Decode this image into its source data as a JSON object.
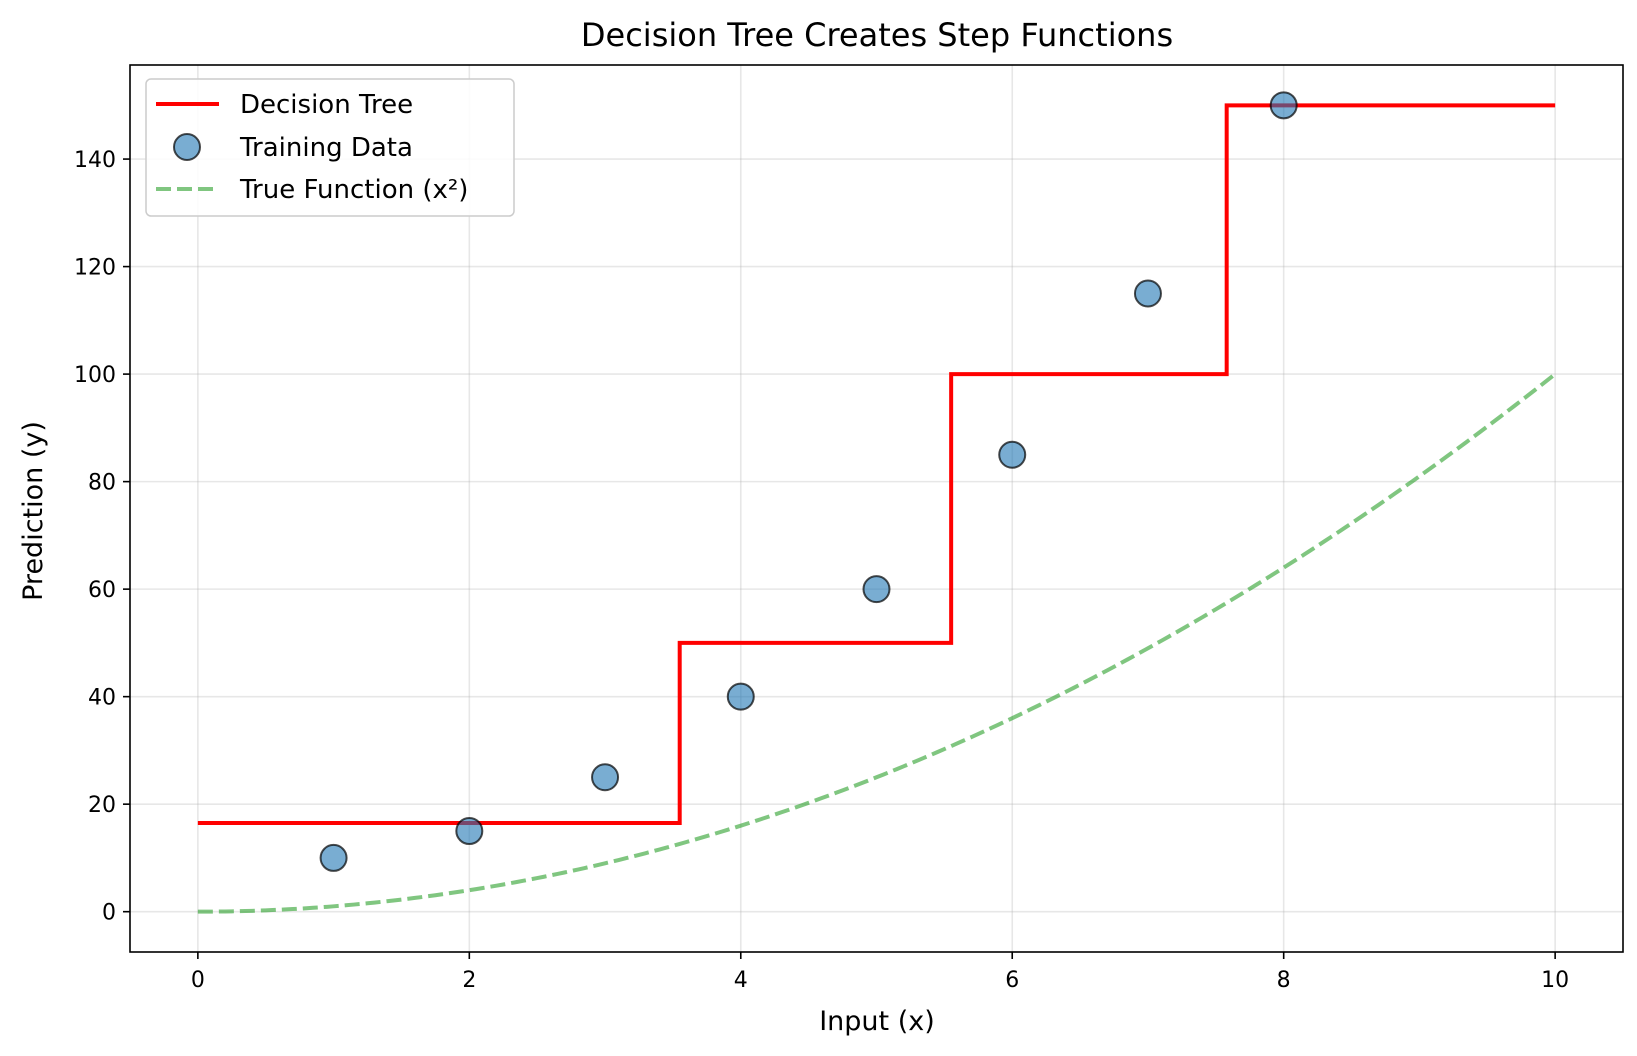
{
  "chart_data": {
    "type": "line",
    "title": "Decision Tree Creates Step Functions",
    "xlabel": "Input (x)",
    "ylabel": "Prediction (y)",
    "xlim": [
      -0.5,
      10.5
    ],
    "ylim": [
      -7.5,
      157.5
    ],
    "xticks": [
      0,
      2,
      4,
      6,
      8,
      10
    ],
    "xtick_labels": [
      "0",
      "2",
      "4",
      "6",
      "8",
      "10"
    ],
    "yticks": [
      0,
      20,
      40,
      60,
      80,
      100,
      120,
      140
    ],
    "ytick_labels": [
      "0",
      "20",
      "40",
      "60",
      "80",
      "100",
      "120",
      "140"
    ],
    "grid": true,
    "legend_position": "top-left",
    "series": [
      {
        "name": "Decision Tree",
        "kind": "step",
        "color": "#ff0000",
        "x": [
          0,
          3.55,
          3.55,
          5.55,
          5.55,
          7.58,
          7.58,
          10
        ],
        "y": [
          16.5,
          16.5,
          50,
          50,
          100,
          100,
          150,
          150
        ]
      },
      {
        "name": "Training Data",
        "kind": "scatter",
        "color": "#1f77b4",
        "x": [
          1,
          2,
          3,
          4,
          5,
          6,
          7,
          8
        ],
        "y": [
          10,
          15,
          25,
          40,
          60,
          85,
          115,
          150
        ]
      },
      {
        "name": "True Function (x²)",
        "kind": "dashed-line",
        "color": "#2ca02c",
        "function": "x^2",
        "x_range": [
          0,
          10
        ]
      }
    ]
  }
}
